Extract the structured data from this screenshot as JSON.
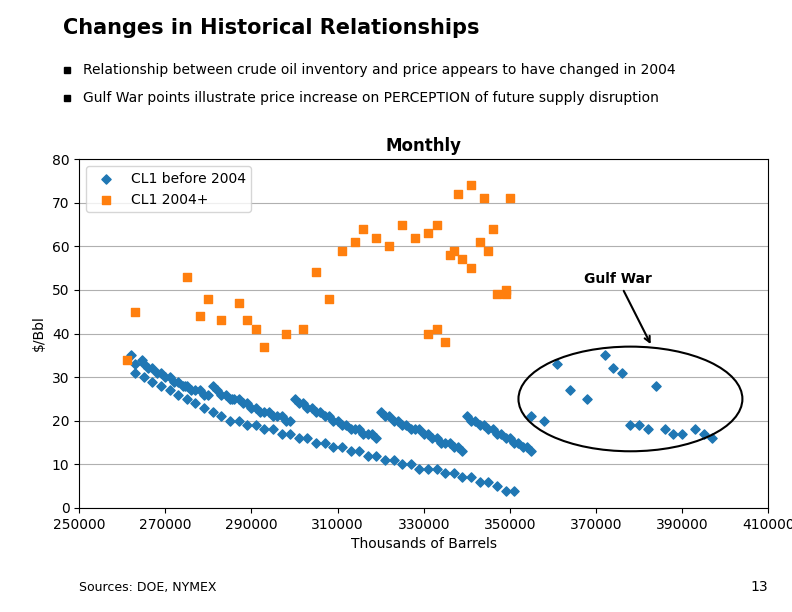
{
  "chart_data": {
    "type": "scatter",
    "title": "Changes in Historical Relationships",
    "bullets": [
      "Relationship between crude oil inventory and price appears to have changed in 2004",
      "Gulf War points illustrate price increase on PERCEPTION of future supply disruption"
    ],
    "subtitle": "Monthly",
    "xlabel": "Thousands of Barrels",
    "ylabel": "$/Bbl",
    "source": "Sources: DOE, NYMEX",
    "page_number": "13",
    "xlim": [
      250000,
      410000
    ],
    "ylim": [
      0,
      80
    ],
    "xticks": [
      250000,
      270000,
      290000,
      310000,
      330000,
      350000,
      370000,
      390000,
      410000
    ],
    "yticks": [
      0,
      10,
      20,
      30,
      40,
      50,
      60,
      70,
      80
    ],
    "grid": "y",
    "legend": "upper left",
    "series": [
      {
        "name": "CL1 before 2004",
        "marker": "diamond",
        "x": [
          262000,
          263000,
          264500,
          265000,
          266000,
          267000,
          268000,
          269000,
          270000,
          271000,
          272000,
          273000,
          274000,
          274500,
          275000,
          276000,
          277000,
          278000,
          279000,
          280000,
          281000,
          282000,
          283000,
          284000,
          285000,
          285500,
          286000,
          287000,
          288000,
          289000,
          290000,
          291000,
          292000,
          293000,
          294000,
          295000,
          296000,
          297000,
          298000,
          299000,
          300000,
          301000,
          302000,
          303000,
          304000,
          305000,
          306000,
          307000,
          308000,
          309000,
          310000,
          311000,
          312000,
          313000,
          314000,
          315000,
          316000,
          317000,
          318000,
          319000,
          320000,
          321000,
          322000,
          323000,
          324000,
          325000,
          326000,
          327000,
          328000,
          329000,
          330000,
          331000,
          332000,
          333000,
          334000,
          335000,
          336000,
          337000,
          338000,
          339000,
          340000,
          341000,
          342000,
          343000,
          344000,
          345000,
          346000,
          347000,
          348000,
          349000,
          350000,
          351000,
          352000,
          353000,
          354000,
          355000,
          263000,
          265000,
          267000,
          269000,
          271000,
          273000,
          275000,
          277000,
          279000,
          281000,
          283000,
          285000,
          287000,
          289000,
          291000,
          293000,
          295000,
          297000,
          299000,
          301000,
          303000,
          305000,
          307000,
          309000,
          311000,
          313000,
          315000,
          317000,
          319000,
          321000,
          323000,
          325000,
          327000,
          329000,
          331000,
          333000,
          335000,
          337000,
          339000,
          341000,
          343000,
          345000,
          347000,
          349000,
          351000,
          355000,
          358000,
          361000,
          364000,
          368000,
          372000,
          374000,
          376000,
          378000,
          380000,
          382000,
          384000,
          386000,
          388000,
          390000,
          393000,
          395000,
          397000
        ],
        "values": [
          35,
          33,
          34,
          33,
          32,
          32,
          31,
          31,
          30,
          30,
          29,
          29,
          28,
          28,
          28,
          27,
          27,
          27,
          26,
          26,
          28,
          27,
          26,
          26,
          25,
          25,
          25,
          25,
          24,
          24,
          23,
          23,
          22,
          22,
          22,
          21,
          21,
          21,
          20,
          20,
          25,
          24,
          24,
          23,
          23,
          22,
          22,
          21,
          21,
          20,
          20,
          19,
          19,
          18,
          18,
          18,
          17,
          17,
          17,
          16,
          22,
          21,
          21,
          20,
          20,
          19,
          19,
          18,
          18,
          18,
          17,
          17,
          16,
          16,
          15,
          15,
          15,
          14,
          14,
          13,
          21,
          20,
          20,
          19,
          19,
          18,
          18,
          17,
          17,
          16,
          16,
          15,
          15,
          14,
          14,
          13,
          31,
          30,
          29,
          28,
          27,
          26,
          25,
          24,
          23,
          22,
          21,
          20,
          20,
          19,
          19,
          18,
          18,
          17,
          17,
          16,
          16,
          15,
          15,
          14,
          14,
          13,
          13,
          12,
          12,
          11,
          11,
          10,
          10,
          9,
          9,
          9,
          8,
          8,
          7,
          7,
          6,
          6,
          5,
          4,
          4,
          21,
          20,
          33,
          27,
          25,
          35,
          32,
          31,
          19,
          19,
          18,
          28,
          18,
          17,
          17,
          18,
          17,
          16
        ]
      },
      {
        "name": "CL1 2004+",
        "marker": "square",
        "x": [
          261000,
          263000,
          275000,
          278000,
          280000,
          283000,
          287000,
          289000,
          291000,
          293000,
          298000,
          302000,
          305000,
          308000,
          311000,
          314000,
          316000,
          319000,
          322000,
          325000,
          328000,
          331000,
          333000,
          336000,
          337000,
          339000,
          341000,
          343000,
          345000,
          347000,
          349000,
          331000,
          333000,
          335000,
          338000,
          341000,
          344000,
          346000,
          349000,
          350000
        ],
        "values": [
          34,
          45,
          53,
          44,
          48,
          43,
          47,
          43,
          41,
          37,
          40,
          41,
          54,
          48,
          59,
          61,
          64,
          62,
          60,
          65,
          62,
          63,
          65,
          58,
          59,
          57,
          55,
          61,
          59,
          49,
          50,
          40,
          41,
          38,
          72,
          74,
          71,
          64,
          49,
          71
        ]
      }
    ],
    "annotations": [
      {
        "text": "Gulf War",
        "x": 383000,
        "y": 37,
        "text_x": 375000,
        "text_y": 51
      }
    ],
    "ellipse": {
      "x": 378000,
      "y": 25,
      "width": 52000,
      "height": 24
    }
  }
}
